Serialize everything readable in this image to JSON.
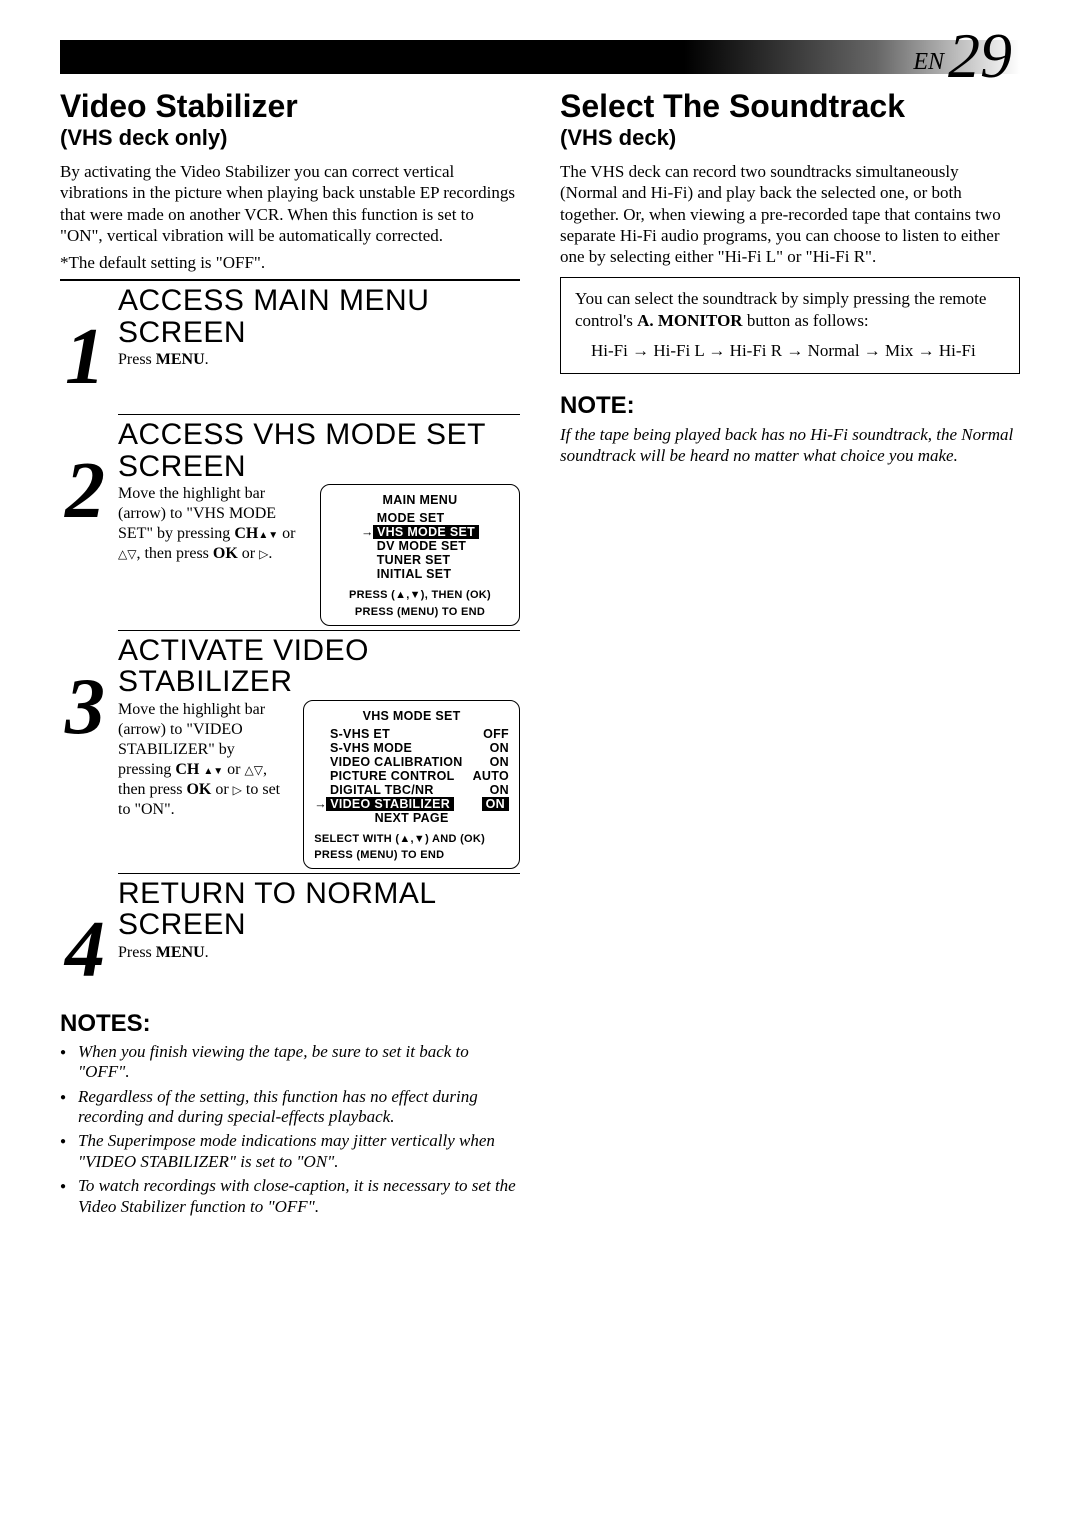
{
  "header": {
    "en_label": "EN",
    "page_number": "29"
  },
  "left": {
    "title": "Video Stabilizer",
    "subtitle": "(VHS deck only)",
    "intro": "By activating the Video Stabilizer you can correct vertical vibrations in the picture when playing back unstable EP recordings that were made on another VCR. When this function is set to \"ON\", vertical vibration will be automatically corrected.",
    "intro_note": "*The default setting is \"OFF\".",
    "steps": [
      {
        "num": "1",
        "title": "ACCESS MAIN MENU SCREEN",
        "body_plain": "Press ",
        "body_bold": "MENU",
        "body_end": "."
      },
      {
        "num": "2",
        "title": "ACCESS VHS MODE SET SCREEN",
        "desc_parts": {
          "a": "Move the highlight bar (arrow) to \"VHS MODE SET\" by pressing ",
          "ch": "CH",
          "b": " or ",
          "c": ", then press ",
          "ok": "OK",
          "d": " or ",
          "e": "."
        },
        "osd": {
          "title": "MAIN MENU",
          "items": [
            "MODE SET",
            "VHS MODE SET",
            "DV MODE SET",
            "TUNER SET",
            "INITIAL SET"
          ],
          "selected_index": 1,
          "footer1": "PRESS (▲,▼), THEN (OK)",
          "footer2": "PRESS (MENU) TO END"
        }
      },
      {
        "num": "3",
        "title": "ACTIVATE VIDEO STABILIZER",
        "desc_parts": {
          "a": "Move the highlight bar (arrow) to \"VIDEO STABILIZER\" by pressing ",
          "ch": "CH ",
          "b": " or ",
          "c": ", then press ",
          "ok": "OK",
          "d": " or ",
          "e": " to set to \"ON\"."
        },
        "osd": {
          "title": "VHS MODE SET",
          "rows": [
            {
              "l": "S-VHS ET",
              "r": "OFF"
            },
            {
              "l": "S-VHS MODE",
              "r": "ON"
            },
            {
              "l": "VIDEO CALIBRATION",
              "r": "ON"
            },
            {
              "l": "PICTURE CONTROL",
              "r": "AUTO"
            },
            {
              "l": "DIGITAL TBC/NR",
              "r": "ON"
            },
            {
              "l": "VIDEO STABILIZER",
              "r": "ON"
            },
            {
              "l": "NEXT PAGE",
              "r": ""
            }
          ],
          "selected_index": 5,
          "footer1": "SELECT WITH (▲,▼) AND (OK)",
          "footer2": "PRESS (MENU) TO END"
        }
      },
      {
        "num": "4",
        "title": "RETURN TO NORMAL SCREEN",
        "body_plain": "Press ",
        "body_bold": "MENU",
        "body_end": "."
      }
    ],
    "notes_title": "NOTES:",
    "notes": [
      "When you finish viewing the tape, be sure to set it back to \"OFF\".",
      "Regardless of the setting, this function has no effect during recording and during special-effects playback.",
      "The Superimpose mode indications may jitter vertically when \"VIDEO STABILIZER\" is set to \"ON\".",
      "To watch recordings with close-caption, it is necessary to set the Video Stabilizer function to \"OFF\"."
    ]
  },
  "right": {
    "title": "Select The Soundtrack",
    "subtitle": "(VHS deck)",
    "intro": "The VHS deck can record two soundtracks simultaneously (Normal and Hi-Fi) and play back the selected one, or both together. Or, when viewing a pre-recorded tape that contains two separate Hi-Fi audio programs, you can choose to listen to either one by selecting either \"Hi-Fi L\" or \"Hi-Fi R\".",
    "callout": {
      "line1a": "You can select the soundtrack by simply pressing the remote control's ",
      "btn": "A. MONITOR",
      "line1b": " button as follows:",
      "chain": "Hi-Fi → Hi-Fi L → Hi-Fi R  → Normal → Mix → Hi-Fi"
    },
    "note_title": "NOTE:",
    "note_body": "If the tape being played back has no Hi-Fi soundtrack, the Normal soundtrack will be heard no matter what choice you make."
  }
}
